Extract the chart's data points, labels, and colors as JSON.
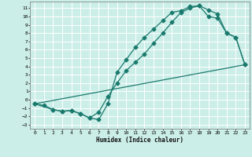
{
  "title": "",
  "xlabel": "Humidex (Indice chaleur)",
  "bg_color": "#cceee8",
  "grid_color": "#ffffff",
  "line_color": "#1a7a6e",
  "markersize": 2.5,
  "linewidth": 0.9,
  "xlim": [
    -0.5,
    23.5
  ],
  "ylim": [
    -3.5,
    11.8
  ],
  "xticks": [
    0,
    1,
    2,
    3,
    4,
    5,
    6,
    7,
    8,
    9,
    10,
    11,
    12,
    13,
    14,
    15,
    16,
    17,
    18,
    19,
    20,
    21,
    22,
    23
  ],
  "yticks": [
    -3,
    -2,
    -1,
    0,
    1,
    2,
    3,
    4,
    5,
    6,
    7,
    8,
    9,
    10,
    11
  ],
  "curve1_x": [
    0,
    1,
    2,
    3,
    4,
    5,
    6,
    7,
    8,
    9,
    10,
    11,
    12,
    13,
    14,
    15,
    16,
    17,
    18,
    19,
    20,
    21,
    22,
    23
  ],
  "curve1_y": [
    -0.5,
    -0.7,
    -1.2,
    -1.4,
    -1.3,
    -1.7,
    -2.2,
    -2.4,
    -0.5,
    3.3,
    4.8,
    6.3,
    7.5,
    8.5,
    9.5,
    10.5,
    10.7,
    11.2,
    11.3,
    10.8,
    10.3,
    8.0,
    7.5,
    4.2
  ],
  "curve2_x": [
    0,
    2,
    3,
    4,
    5,
    6,
    7,
    8,
    9,
    10,
    11,
    12,
    13,
    14,
    15,
    16,
    17,
    18,
    19,
    20,
    21,
    22,
    23
  ],
  "curve2_y": [
    -0.5,
    -1.2,
    -1.4,
    -1.3,
    -1.7,
    -2.2,
    -1.5,
    0.4,
    2.0,
    3.5,
    4.5,
    5.5,
    6.8,
    8.0,
    9.3,
    10.5,
    11.0,
    11.3,
    10.0,
    9.8,
    8.0,
    7.5,
    4.2
  ],
  "curve3_x": [
    0,
    23
  ],
  "curve3_y": [
    -0.5,
    4.2
  ]
}
